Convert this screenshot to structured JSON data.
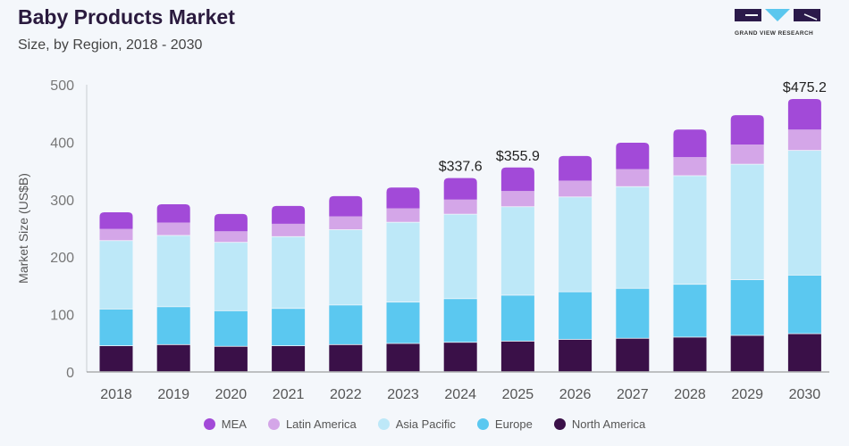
{
  "header": {
    "title": "Baby Products Market",
    "subtitle": "Size, by Region, 2018 - 2030"
  },
  "logo": {
    "text": "GRAND VIEW RESEARCH",
    "colors": {
      "dark": "#2b1a4a",
      "accent": "#5bc7ee"
    }
  },
  "chart_data": {
    "type": "bar",
    "stacked": true,
    "title": "Baby Products Market",
    "subtitle": "Size, by Region, 2018 - 2030",
    "xlabel": "",
    "ylabel": "Market Size (US$B)",
    "ylim": [
      0,
      500
    ],
    "yticks": [
      0,
      100,
      200,
      300,
      400,
      500
    ],
    "grid": false,
    "legend_position": "bottom",
    "categories": [
      "2018",
      "2019",
      "2020",
      "2021",
      "2022",
      "2023",
      "2024",
      "2025",
      "2026",
      "2027",
      "2028",
      "2029",
      "2030"
    ],
    "series": [
      {
        "name": "North America",
        "color": "#3a1048",
        "values": [
          45,
          47,
          44,
          45,
          47,
          49,
          51,
          53,
          56,
          58,
          60,
          63,
          66
        ]
      },
      {
        "name": "Europe",
        "color": "#5bc8f0",
        "values": [
          64,
          66,
          62,
          65,
          69,
          72,
          76,
          80,
          83,
          87,
          92,
          97,
          102
        ]
      },
      {
        "name": "Asia Pacific",
        "color": "#bde8f8",
        "values": [
          119,
          124,
          119,
          125,
          131,
          139,
          147,
          154,
          165,
          177,
          189,
          201,
          217
        ]
      },
      {
        "name": "Latin America",
        "color": "#d4a6e8",
        "values": [
          21,
          23,
          20,
          23,
          24,
          25,
          26,
          28,
          29,
          31,
          33,
          35,
          37
        ]
      },
      {
        "name": "MEA",
        "color": "#a24ad8",
        "values": [
          29,
          32,
          30,
          31,
          35,
          36,
          37.6,
          40.9,
          43,
          46,
          48,
          51,
          53.2
        ]
      }
    ],
    "totals": [
      278,
      292,
      275,
      289,
      306,
      321,
      337.6,
      355.9,
      376,
      399,
      422,
      447,
      475.2
    ],
    "annotations": [
      {
        "category": "2024",
        "label": "$337.6"
      },
      {
        "category": "2025",
        "label": "$355.9"
      },
      {
        "category": "2030",
        "label": "$475.2"
      }
    ],
    "legend_order": [
      "MEA",
      "Latin America",
      "Asia Pacific",
      "Europe",
      "North America"
    ]
  }
}
